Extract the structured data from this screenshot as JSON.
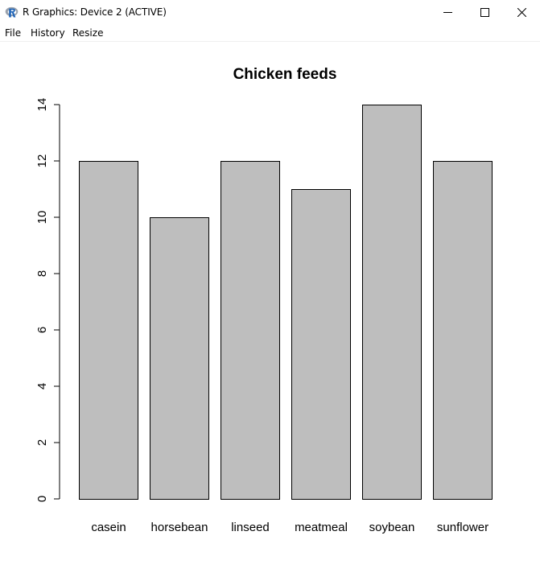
{
  "window": {
    "title": "R Graphics: Device 2 (ACTIVE)",
    "icon": "r-logo-icon",
    "controls": [
      "minimize-icon",
      "maximize-icon",
      "close-icon"
    ]
  },
  "menu": {
    "file": "File",
    "history": "History",
    "resize": "Resize"
  },
  "colors": {
    "bar_fill": "#bebebe",
    "bar_stroke": "#000000",
    "r_logo": "#2266b8"
  },
  "chart_data": {
    "type": "bar",
    "title": "Chicken feeds",
    "xlabel": "",
    "ylabel": "",
    "categories": [
      "casein",
      "horsebean",
      "linseed",
      "meatmeal",
      "soybean",
      "sunflower"
    ],
    "values": [
      12,
      10,
      12,
      11,
      14,
      12
    ],
    "ylim": [
      0,
      14
    ],
    "yticks": [
      0,
      2,
      4,
      6,
      8,
      10,
      12,
      14
    ],
    "grid": false
  }
}
